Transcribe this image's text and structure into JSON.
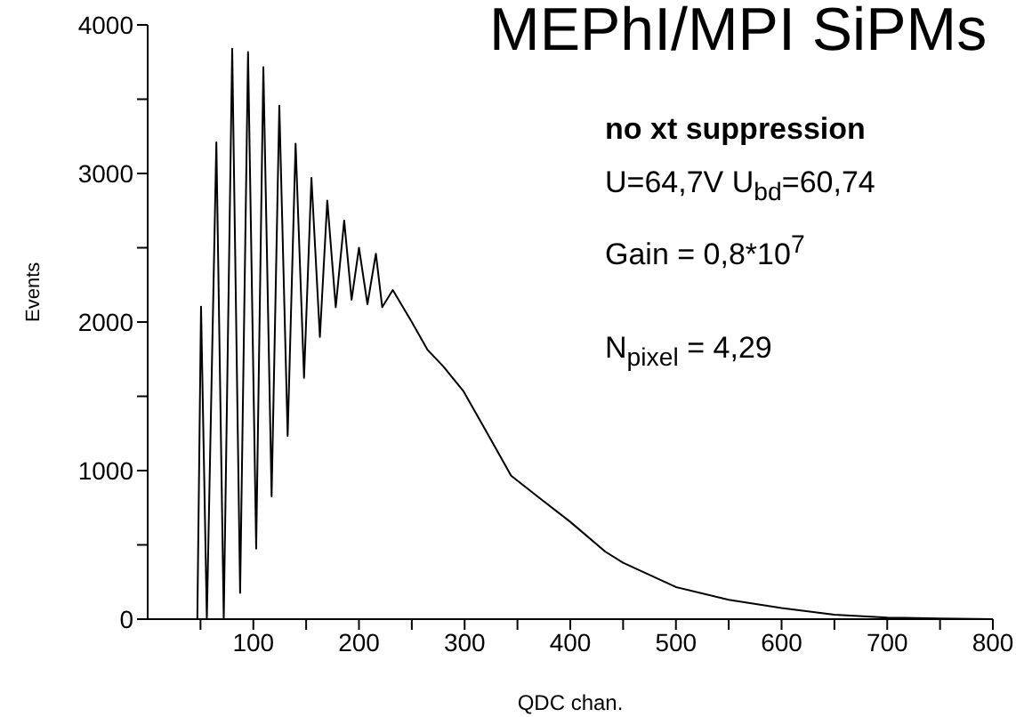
{
  "chart_data": {
    "type": "line",
    "title": "MEPhI/MPI SiPMs",
    "xlabel": "QDC chan.",
    "ylabel": "Events",
    "annotations": [
      "no xt suppression",
      "U=64,7V  U$_{bd}$=60,74",
      "Gain = 0,8*10$^{7}$",
      "N$_{pixel}$ = 4,29"
    ],
    "x": [
      47,
      50.5,
      56,
      65,
      72,
      80,
      87.5,
      95,
      102.7,
      109.5,
      117.3,
      124.6,
      132.5,
      140,
      148,
      155,
      163,
      170,
      178,
      186,
      193,
      200,
      208,
      216,
      222,
      232,
      250,
      265,
      280,
      299,
      320,
      344,
      370,
      400,
      433,
      450,
      500,
      550,
      600,
      650,
      700,
      750,
      800
    ],
    "series": [
      {
        "color": "#000000",
        "values": [
          0,
          2104,
          0,
          3210,
          0,
          3840,
          176,
          3817,
          475,
          3716,
          826,
          3457,
          1233,
          3201,
          1625,
          2970,
          1900,
          2818,
          2100,
          2683,
          2150,
          2500,
          2120,
          2460,
          2100,
          2215,
          2000,
          1812,
          1700,
          1533,
          1270,
          966,
          820,
          655,
          455,
          380,
          216,
          130,
          75,
          30,
          10,
          5,
          0
        ]
      }
    ],
    "xlim": [
      0,
      800
    ],
    "ylim": [
      0,
      4000
    ],
    "xticks": [
      {
        "value": 50,
        "label": null
      },
      100,
      {
        "value": 150,
        "label": null
      },
      200,
      {
        "value": 250,
        "label": null
      },
      300,
      {
        "value": 350,
        "label": null
      },
      400,
      {
        "value": 450,
        "label": null
      },
      500,
      {
        "value": 550,
        "label": null
      },
      600,
      {
        "value": 650,
        "label": null
      },
      700,
      {
        "value": 750,
        "label": null
      },
      800
    ],
    "yticks": [
      0,
      {
        "value": 500,
        "label": null
      },
      1000,
      {
        "value": 1500,
        "label": null
      },
      2000,
      {
        "value": 2500,
        "label": null
      },
      3000,
      {
        "value": 3500,
        "label": null
      },
      4000
    ],
    "grid": false,
    "legend": false
  }
}
